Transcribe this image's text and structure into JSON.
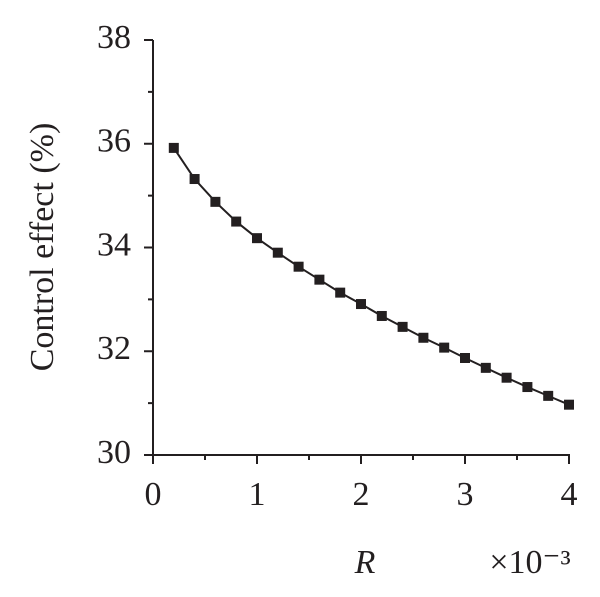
{
  "chart_data": {
    "type": "line",
    "x_label": "R",
    "y_label": "Control effect (%)",
    "x_multiplier": "×10⁻³",
    "x": [
      0.2,
      0.4,
      0.6,
      0.8,
      1.0,
      1.2,
      1.4,
      1.6,
      1.8,
      2.0,
      2.2,
      2.4,
      2.6,
      2.8,
      3.0,
      3.2,
      3.4,
      3.6,
      3.8,
      4.0
    ],
    "series": [
      {
        "color": "#231f20",
        "values": [
          35.92,
          35.32,
          34.88,
          34.5,
          34.18,
          33.9,
          33.63,
          33.38,
          33.13,
          32.91,
          32.68,
          32.47,
          32.26,
          32.07,
          31.87,
          31.68,
          31.49,
          31.31,
          31.14,
          30.97
        ]
      }
    ],
    "xlim": [
      0,
      4
    ],
    "xticks": [
      0,
      1,
      2,
      3,
      4
    ],
    "xminorticks": [
      0.5,
      1.5,
      2.5,
      3.5
    ],
    "ylim": [
      30,
      38
    ],
    "yticks": [
      30,
      32,
      34,
      36,
      38
    ],
    "yminorticks": [
      31,
      33,
      35,
      37
    ]
  }
}
